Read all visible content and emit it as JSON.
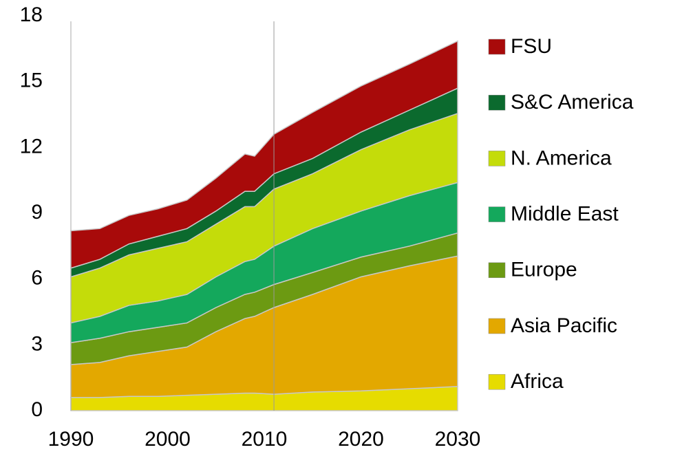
{
  "chart_data": {
    "type": "stacked_area",
    "x": [
      1990,
      1993,
      1996,
      1999,
      2002,
      2005,
      2008,
      2009,
      2011,
      2015,
      2020,
      2025,
      2030
    ],
    "series": [
      {
        "name": "Africa",
        "color": "#e6dc00",
        "values": [
          0.6,
          0.6,
          0.65,
          0.65,
          0.7,
          0.75,
          0.8,
          0.8,
          0.75,
          0.85,
          0.9,
          1.0,
          1.1
        ]
      },
      {
        "name": "Asia Pacific",
        "color": "#e3a800",
        "values": [
          1.5,
          1.6,
          1.85,
          2.05,
          2.2,
          2.85,
          3.4,
          3.5,
          3.95,
          4.45,
          5.2,
          5.6,
          5.95
        ]
      },
      {
        "name": "Europe",
        "color": "#6c9a12",
        "values": [
          1.0,
          1.1,
          1.1,
          1.1,
          1.1,
          1.1,
          1.1,
          1.1,
          1.05,
          1.0,
          0.9,
          0.9,
          1.05
        ]
      },
      {
        "name": "Middle East",
        "color": "#14a85c",
        "values": [
          0.9,
          1.0,
          1.2,
          1.2,
          1.3,
          1.4,
          1.5,
          1.5,
          1.75,
          2.0,
          2.1,
          2.3,
          2.3
        ]
      },
      {
        "name": "N. America",
        "color": "#c4dc0a",
        "values": [
          2.1,
          2.2,
          2.3,
          2.4,
          2.4,
          2.4,
          2.5,
          2.4,
          2.6,
          2.5,
          2.8,
          3.0,
          3.15
        ]
      },
      {
        "name": "S&C America",
        "color": "#0b6a2e",
        "values": [
          0.4,
          0.4,
          0.5,
          0.55,
          0.6,
          0.6,
          0.7,
          0.7,
          0.7,
          0.7,
          0.8,
          0.9,
          1.15
        ]
      },
      {
        "name": "FSU",
        "color": "#a80a0a",
        "values": [
          1.7,
          1.4,
          1.3,
          1.25,
          1.3,
          1.5,
          1.7,
          1.6,
          1.8,
          2.1,
          2.1,
          2.1,
          2.15
        ]
      }
    ],
    "xlim": [
      1990,
      2030
    ],
    "xticks": [
      1990,
      2000,
      2010,
      2020,
      2030
    ],
    "ylim": [
      0,
      18
    ],
    "yticks": [
      0,
      3,
      6,
      9,
      12,
      15,
      18
    ],
    "vline_x": 2011,
    "legend": "right",
    "legend_order": "reversed"
  }
}
